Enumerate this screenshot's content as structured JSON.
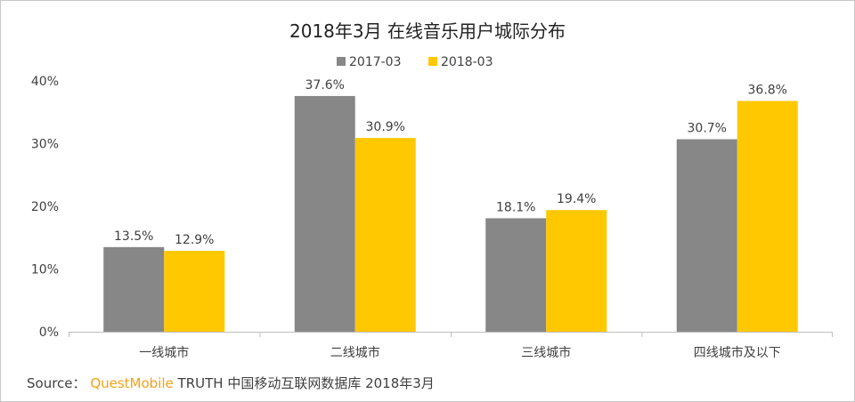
{
  "chart_data": {
    "type": "bar",
    "title": "2018年3月 在线音乐用户城际分布",
    "categories": [
      "一线城市",
      "二线城市",
      "三线城市",
      "四线城市及以下"
    ],
    "series": [
      {
        "name": "2017-03",
        "values": [
          13.5,
          37.6,
          18.1,
          30.7
        ],
        "labels": [
          "13.5%",
          "37.6%",
          "18.1%",
          "30.7%"
        ],
        "color": "#878787"
      },
      {
        "name": "2018-03",
        "values": [
          12.9,
          30.9,
          19.4,
          36.8
        ],
        "labels": [
          "12.9%",
          "30.9%",
          "19.4%",
          "36.8%"
        ],
        "color": "#ffc800"
      }
    ],
    "ylim": [
      0,
      40
    ],
    "yticks": [
      0,
      10,
      20,
      30,
      40
    ],
    "ytick_labels": [
      "0%",
      "10%",
      "20%",
      "30%",
      "40%"
    ],
    "xlabel": "",
    "ylabel": "",
    "grid": false,
    "legend": "top-center"
  },
  "source": {
    "prefix": "Source：",
    "brand": "QuestMobile",
    "suffix": "TRUTH 中国移动互联网数据库 2018年3月"
  }
}
